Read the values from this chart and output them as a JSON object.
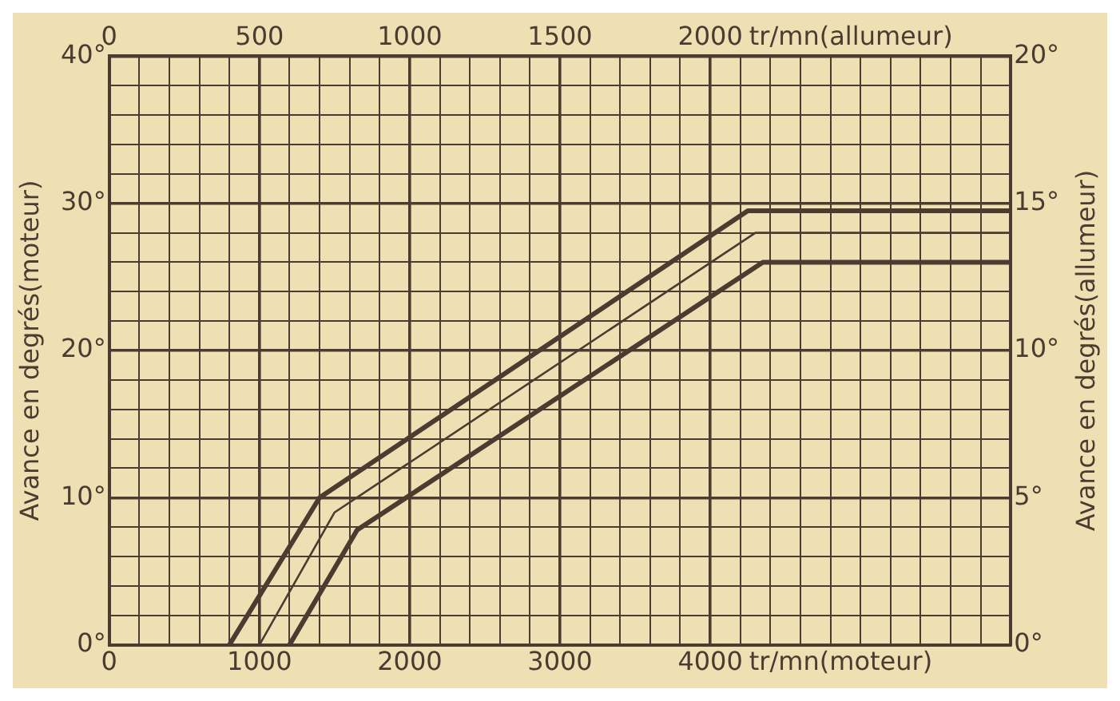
{
  "chart_data": {
    "type": "line",
    "xlabel": "tr/mn(moteur)",
    "x2label": "tr/mn(allumeur)",
    "ylabel": "Avance en degrés(moteur)",
    "y2label": "Avance en degrés(allumeur)",
    "series": [
      {
        "color": "#4b3b30",
        "x": [
          800,
          1400,
          4250,
          6000
        ],
        "values": [
          0,
          10,
          29.5,
          29.5
        ]
      },
      {
        "color": "#4b3b30",
        "x": [
          1000,
          1500,
          4300,
          6000
        ],
        "values": [
          0,
          9,
          28,
          28
        ]
      },
      {
        "color": "#4b3b30",
        "x": [
          1200,
          1650,
          4350,
          6000
        ],
        "values": [
          0,
          7.8,
          26,
          26
        ]
      }
    ],
    "xlim": [
      0,
      6000
    ],
    "xticks": [
      0,
      {
        "value": 200,
        "label": null
      },
      {
        "value": 400,
        "label": null
      },
      {
        "value": 600,
        "label": null
      },
      {
        "value": 800,
        "label": null
      },
      1000,
      {
        "value": 1200,
        "label": null
      },
      {
        "value": 1400,
        "label": null
      },
      {
        "value": 1600,
        "label": null
      },
      {
        "value": 1800,
        "label": null
      },
      2000,
      {
        "value": 2200,
        "label": null
      },
      {
        "value": 2400,
        "label": null
      },
      {
        "value": 2600,
        "label": null
      },
      {
        "value": 2800,
        "label": null
      },
      3000,
      {
        "value": 3200,
        "label": null
      },
      {
        "value": 3400,
        "label": null
      },
      {
        "value": 3600,
        "label": null
      },
      {
        "value": 3800,
        "label": null
      },
      4000,
      {
        "value": 4200,
        "label": null
      },
      {
        "value": 4400,
        "label": null
      },
      {
        "value": 4600,
        "label": null
      },
      {
        "value": 4800,
        "label": null
      },
      {
        "value": 5000,
        "label": null
      },
      {
        "value": 5200,
        "label": null
      },
      {
        "value": 5400,
        "label": null
      },
      {
        "value": 5600,
        "label": null
      },
      {
        "value": 5800,
        "label": null
      },
      {
        "value": 6000,
        "label": null
      }
    ],
    "x2lim": [
      0,
      3000
    ],
    "x2ticks": [
      0,
      500,
      1000,
      1500,
      2000
    ],
    "ylim": [
      0,
      40
    ],
    "yticks": [
      {
        "value": 0,
        "label": "0°"
      },
      {
        "value": 2,
        "label": null
      },
      {
        "value": 4,
        "label": null
      },
      {
        "value": 6,
        "label": null
      },
      {
        "value": 8,
        "label": null
      },
      {
        "value": 10,
        "label": "10°"
      },
      {
        "value": 12,
        "label": null
      },
      {
        "value": 14,
        "label": null
      },
      {
        "value": 16,
        "label": null
      },
      {
        "value": 18,
        "label": null
      },
      {
        "value": 20,
        "label": "20°"
      },
      {
        "value": 22,
        "label": null
      },
      {
        "value": 24,
        "label": null
      },
      {
        "value": 26,
        "label": null
      },
      {
        "value": 28,
        "label": null
      },
      {
        "value": 30,
        "label": "30°"
      },
      {
        "value": 32,
        "label": null
      },
      {
        "value": 34,
        "label": null
      },
      {
        "value": 36,
        "label": null
      },
      {
        "value": 38,
        "label": null
      },
      {
        "value": 40,
        "label": "40°"
      }
    ],
    "y2lim": [
      0,
      20
    ],
    "y2ticks": [
      {
        "value": 0,
        "label": "0°"
      },
      {
        "value": 5,
        "label": "5°"
      },
      {
        "value": 10,
        "label": "10°"
      },
      {
        "value": 15,
        "label": "15°"
      },
      {
        "value": 20,
        "label": "20°"
      }
    ],
    "grid": true,
    "marker": "none",
    "line_style": "solid",
    "legend": false
  }
}
